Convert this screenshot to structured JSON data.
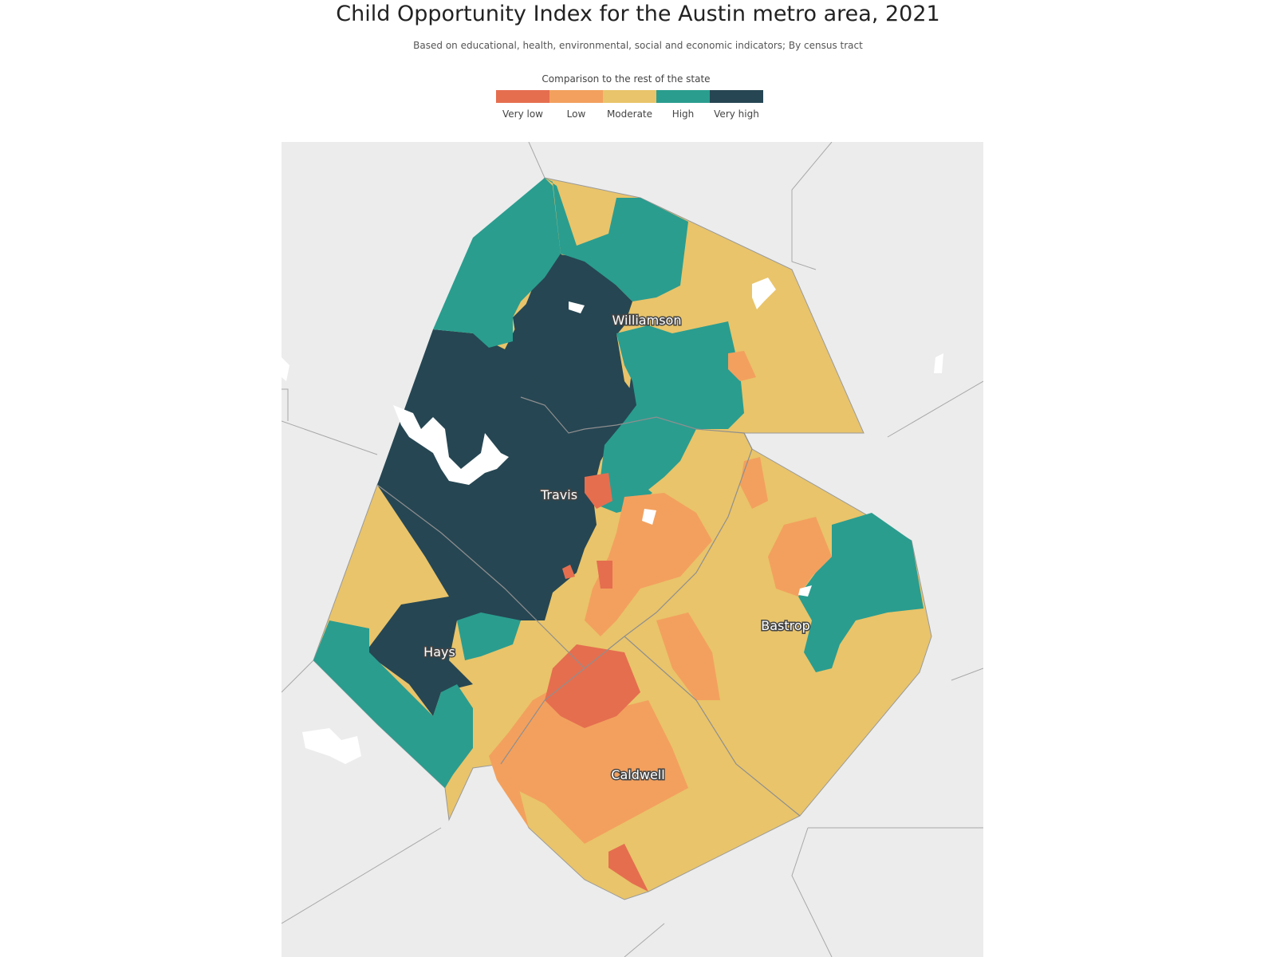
{
  "title": "Child Opportunity Index for the Austin metro area, 2021",
  "subtitle": "Based on educational, health, environmental, social and economic indicators; By census tract",
  "legend": {
    "title": "Comparison to the rest of the state",
    "items": [
      {
        "label": "Very low",
        "color": "#e56e4f"
      },
      {
        "label": "Low",
        "color": "#f3a05e"
      },
      {
        "label": "Moderate",
        "color": "#e9c46a"
      },
      {
        "label": "High",
        "color": "#2a9d8f"
      },
      {
        "label": "Very high",
        "color": "#264653"
      }
    ]
  },
  "counties": [
    {
      "name": "Williamson"
    },
    {
      "name": "Travis"
    },
    {
      "name": "Hays"
    },
    {
      "name": "Bastrop"
    },
    {
      "name": "Caldwell"
    }
  ],
  "colors": {
    "background_land": "#ececec",
    "county_border": "#9a9a9a",
    "water": "#ffffff"
  }
}
